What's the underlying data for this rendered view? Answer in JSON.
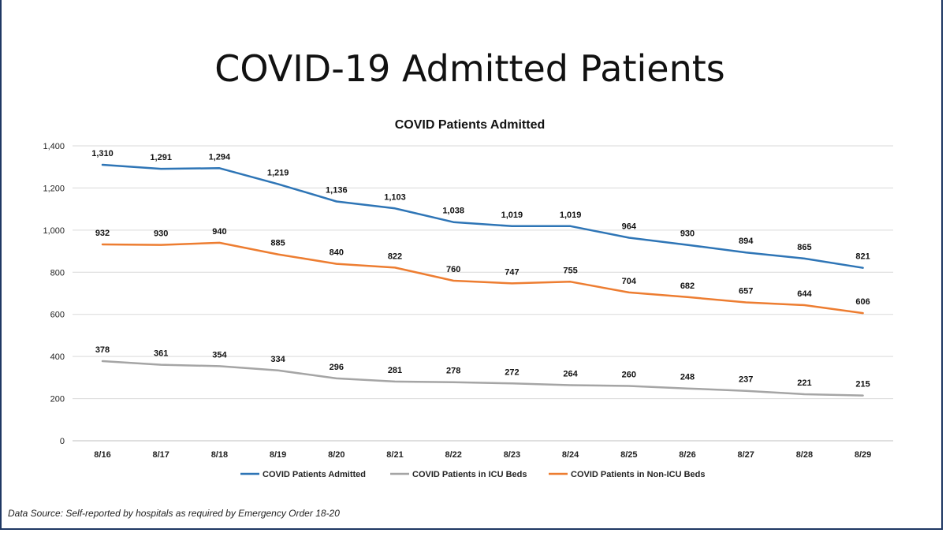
{
  "page": {
    "title": "COVID-19 Admitted Patients",
    "source_note": "Data Source: Self-reported by hospitals as required by Emergency Order 18-20"
  },
  "chart_data": {
    "type": "line",
    "title": "COVID Patients Admitted",
    "xlabel": "",
    "ylabel": "",
    "categories": [
      "8/16",
      "8/17",
      "8/18",
      "8/19",
      "8/20",
      "8/21",
      "8/22",
      "8/23",
      "8/24",
      "8/25",
      "8/26",
      "8/27",
      "8/28",
      "8/29"
    ],
    "ylim": [
      0,
      1400
    ],
    "yticks": [
      0,
      200,
      400,
      600,
      800,
      1000,
      1200,
      1400
    ],
    "ytick_labels": [
      "0",
      "200",
      "400",
      "600",
      "800",
      "1,000",
      "1,200",
      "1,400"
    ],
    "grid": true,
    "legend": "bottom",
    "series": [
      {
        "name": "COVID Patients Admitted",
        "color": "#2e75b6",
        "values": [
          1310,
          1291,
          1294,
          1219,
          1136,
          1103,
          1038,
          1019,
          1019,
          964,
          930,
          894,
          865,
          821
        ],
        "labels": [
          "1,310",
          "1,291",
          "1,294",
          "1,219",
          "1,136",
          "1,103",
          "1,038",
          "1,019",
          "1,019",
          "964",
          "930",
          "894",
          "865",
          "821"
        ]
      },
      {
        "name": "COVID Patients in ICU Beds",
        "color": "#a5a5a5",
        "values": [
          378,
          361,
          354,
          334,
          296,
          281,
          278,
          272,
          264,
          260,
          248,
          237,
          221,
          215
        ],
        "labels": [
          "378",
          "361",
          "354",
          "334",
          "296",
          "281",
          "278",
          "272",
          "264",
          "260",
          "248",
          "237",
          "221",
          "215"
        ]
      },
      {
        "name": "COVID Patients in Non-ICU Beds",
        "color": "#ed7d31",
        "values": [
          932,
          930,
          940,
          885,
          840,
          822,
          760,
          747,
          755,
          704,
          682,
          657,
          644,
          606
        ],
        "labels": [
          "932",
          "930",
          "940",
          "885",
          "840",
          "822",
          "760",
          "747",
          "755",
          "704",
          "682",
          "657",
          "644",
          "606"
        ]
      }
    ]
  }
}
